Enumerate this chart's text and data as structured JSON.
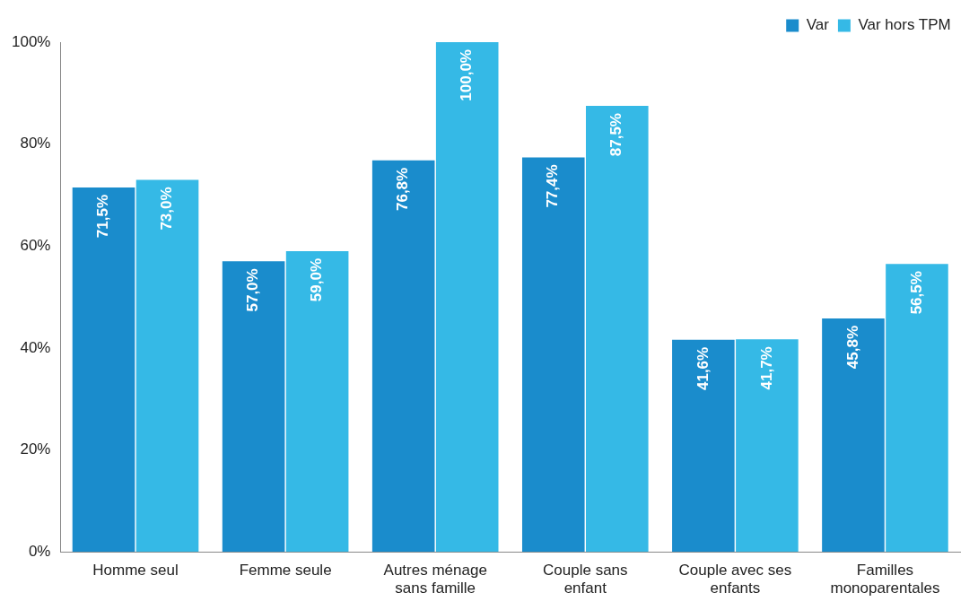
{
  "chart_data": {
    "type": "bar",
    "categories": [
      "Homme seul",
      "Femme seule",
      "Autres ménage sans famille",
      "Couple sans enfant",
      "Couple avec ses enfants",
      "Familles monoparentales"
    ],
    "series": [
      {
        "name": "Var",
        "color": "#1a8ccc",
        "values": [
          71.5,
          57.0,
          76.8,
          77.4,
          41.6,
          45.8
        ],
        "value_labels": [
          "71,5%",
          "57,0%",
          "76,8%",
          "77,4%",
          "41,6%",
          "45,8%"
        ]
      },
      {
        "name": "Var hors TPM",
        "color": "#35b9e6",
        "values": [
          73.0,
          59.0,
          100.0,
          87.5,
          41.7,
          56.5
        ],
        "value_labels": [
          "73,0%",
          "59,0%",
          "100,0%",
          "87,5%",
          "41,7%",
          "56,5%"
        ]
      }
    ],
    "ylim": [
      0,
      100
    ],
    "yticks": [
      {
        "value": 0,
        "label": "0%"
      },
      {
        "value": 20,
        "label": "20%"
      },
      {
        "value": 40,
        "label": "40%"
      },
      {
        "value": 60,
        "label": "60%"
      },
      {
        "value": 80,
        "label": "80%"
      },
      {
        "value": 100,
        "label": "100%"
      }
    ],
    "grid": false,
    "legend": "top right"
  }
}
